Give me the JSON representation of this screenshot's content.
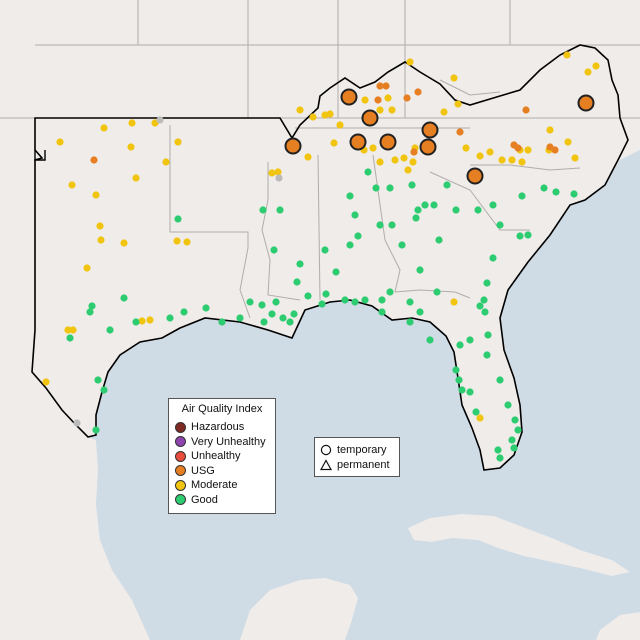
{
  "legend": {
    "title": "Air Quality Index",
    "items": [
      {
        "label": "Hazardous",
        "color": "#7e2a23"
      },
      {
        "label": "Very Unhealthy",
        "color": "#8e44ad"
      },
      {
        "label": "Unhealthy",
        "color": "#e74c3c"
      },
      {
        "label": "USG",
        "color": "#e67e22"
      },
      {
        "label": "Moderate",
        "color": "#f1c40f"
      },
      {
        "label": "Good",
        "color": "#2ecc71"
      }
    ]
  },
  "shape_legend": {
    "temporary": "temporary",
    "permanent": "permanent"
  },
  "colors": {
    "water": "#cfdbe5",
    "land": "#efece9",
    "region_outline": "#000000",
    "state_border": "#b0adaa"
  }
}
